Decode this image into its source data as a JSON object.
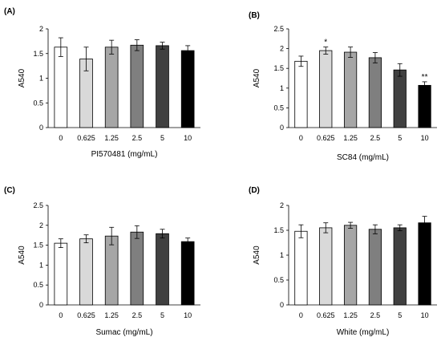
{
  "chart_data": [
    {
      "panel": "(A)",
      "type": "bar",
      "categories": [
        "0",
        "0.625",
        "1.25",
        "2.5",
        "5",
        "10"
      ],
      "values": [
        1.63,
        1.39,
        1.63,
        1.67,
        1.66,
        1.56
      ],
      "errors": [
        0.19,
        0.24,
        0.14,
        0.11,
        0.07,
        0.1
      ],
      "significance": [
        "",
        "",
        "",
        "",
        "",
        ""
      ],
      "xlabel": "PI570481 (mg/mL)",
      "ylabel": "A540",
      "ylim": [
        0,
        2
      ],
      "yticks": [
        "0",
        "0.5",
        "1",
        "1.5",
        "2"
      ],
      "bar_colors": [
        "#ffffff",
        "#d9d9d9",
        "#a6a6a6",
        "#7f7f7f",
        "#404040",
        "#000000"
      ]
    },
    {
      "panel": "(B)",
      "type": "bar",
      "categories": [
        "0",
        "0.625",
        "1.25",
        "2.5",
        "5",
        "10"
      ],
      "values": [
        1.68,
        1.95,
        1.91,
        1.77,
        1.46,
        1.07
      ],
      "errors": [
        0.13,
        0.09,
        0.13,
        0.13,
        0.16,
        0.09
      ],
      "significance": [
        "",
        "*",
        "",
        "",
        "",
        "**"
      ],
      "xlabel": "SC84 (mg/mL)",
      "ylabel": "A540",
      "ylim": [
        0,
        2.5
      ],
      "yticks": [
        "0",
        "0.5",
        "1",
        "1.5",
        "2",
        "2.5"
      ],
      "bar_colors": [
        "#ffffff",
        "#d9d9d9",
        "#a6a6a6",
        "#7f7f7f",
        "#404040",
        "#000000"
      ]
    },
    {
      "panel": "(C)",
      "type": "bar",
      "categories": [
        "0",
        "0.625",
        "1.25",
        "2.5",
        "5",
        "10"
      ],
      "values": [
        1.55,
        1.66,
        1.73,
        1.83,
        1.79,
        1.59
      ],
      "errors": [
        0.11,
        0.1,
        0.22,
        0.16,
        0.11,
        0.09
      ],
      "significance": [
        "",
        "",
        "",
        "",
        "",
        ""
      ],
      "xlabel": "Sumac (mg/mL)",
      "ylabel": "A540",
      "ylim": [
        0,
        2.5
      ],
      "yticks": [
        "0",
        "0.5",
        "1",
        "1.5",
        "2",
        "2.5"
      ],
      "bar_colors": [
        "#ffffff",
        "#d9d9d9",
        "#a6a6a6",
        "#7f7f7f",
        "#404040",
        "#000000"
      ]
    },
    {
      "panel": "(D)",
      "type": "bar",
      "categories": [
        "0",
        "0.625",
        "1.25",
        "2.5",
        "5",
        "10"
      ],
      "values": [
        1.48,
        1.55,
        1.6,
        1.52,
        1.55,
        1.65
      ],
      "errors": [
        0.13,
        0.1,
        0.06,
        0.09,
        0.06,
        0.13
      ],
      "significance": [
        "",
        "",
        "",
        "",
        "",
        ""
      ],
      "xlabel": "White (mg/mL)",
      "ylabel": "A540",
      "ylim": [
        0,
        2
      ],
      "yticks": [
        "0",
        "0.5",
        "1",
        "1.5",
        "2"
      ],
      "bar_colors": [
        "#ffffff",
        "#d9d9d9",
        "#a6a6a6",
        "#7f7f7f",
        "#404040",
        "#000000"
      ]
    }
  ]
}
